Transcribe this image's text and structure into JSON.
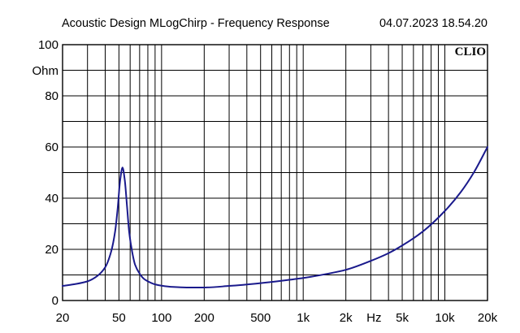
{
  "header": {
    "title": "Acoustic Design MLogChirp - Frequency Response",
    "timestamp": "04.07.2023 18.54.20"
  },
  "brand": {
    "label": "CLIO"
  },
  "chart_data": {
    "type": "line",
    "title": "Acoustic Design MLogChirp - Frequency Response",
    "xlabel": "Hz",
    "ylabel": "Ohm",
    "x_scale": "log",
    "xlim": [
      20,
      20000
    ],
    "ylim": [
      0,
      100
    ],
    "grid": true,
    "x_ticks": [
      {
        "value": 20,
        "label": "20"
      },
      {
        "value": 50,
        "label": "50"
      },
      {
        "value": 100,
        "label": "100"
      },
      {
        "value": 200,
        "label": "200"
      },
      {
        "value": 500,
        "label": "500"
      },
      {
        "value": 1000,
        "label": "1k"
      },
      {
        "value": 2000,
        "label": "2k"
      },
      {
        "value": 5000,
        "label": "5k"
      },
      {
        "value": 10000,
        "label": "10k"
      },
      {
        "value": 20000,
        "label": "20k"
      }
    ],
    "y_ticks": [
      {
        "value": 0,
        "label": "0"
      },
      {
        "value": 20,
        "label": "20"
      },
      {
        "value": 40,
        "label": "40"
      },
      {
        "value": 60,
        "label": "60"
      },
      {
        "value": 80,
        "label": "80"
      },
      {
        "value": 100,
        "label": "100"
      }
    ],
    "line_color": "#1a1a8c",
    "series": [
      {
        "x": [
          20,
          25,
          30,
          35,
          40,
          44,
          47,
          49,
          51,
          53,
          55,
          57,
          59,
          62,
          65,
          70,
          75,
          80,
          90,
          100,
          120,
          150,
          200,
          300,
          500,
          700,
          1000,
          1500,
          2000,
          3000,
          4000,
          5000,
          7000,
          10000,
          13000,
          16000,
          20000
        ],
        "values": [
          5.7,
          6.5,
          7.5,
          9.5,
          13,
          19,
          27,
          36,
          47,
          52,
          47,
          37,
          27,
          19,
          14,
          10.5,
          8.5,
          7.5,
          6.3,
          5.8,
          5.3,
          5.1,
          5.1,
          5.7,
          6.8,
          7.7,
          8.8,
          10.5,
          12,
          15.5,
          18.5,
          21.5,
          27,
          35,
          42.5,
          50,
          60
        ]
      }
    ]
  }
}
